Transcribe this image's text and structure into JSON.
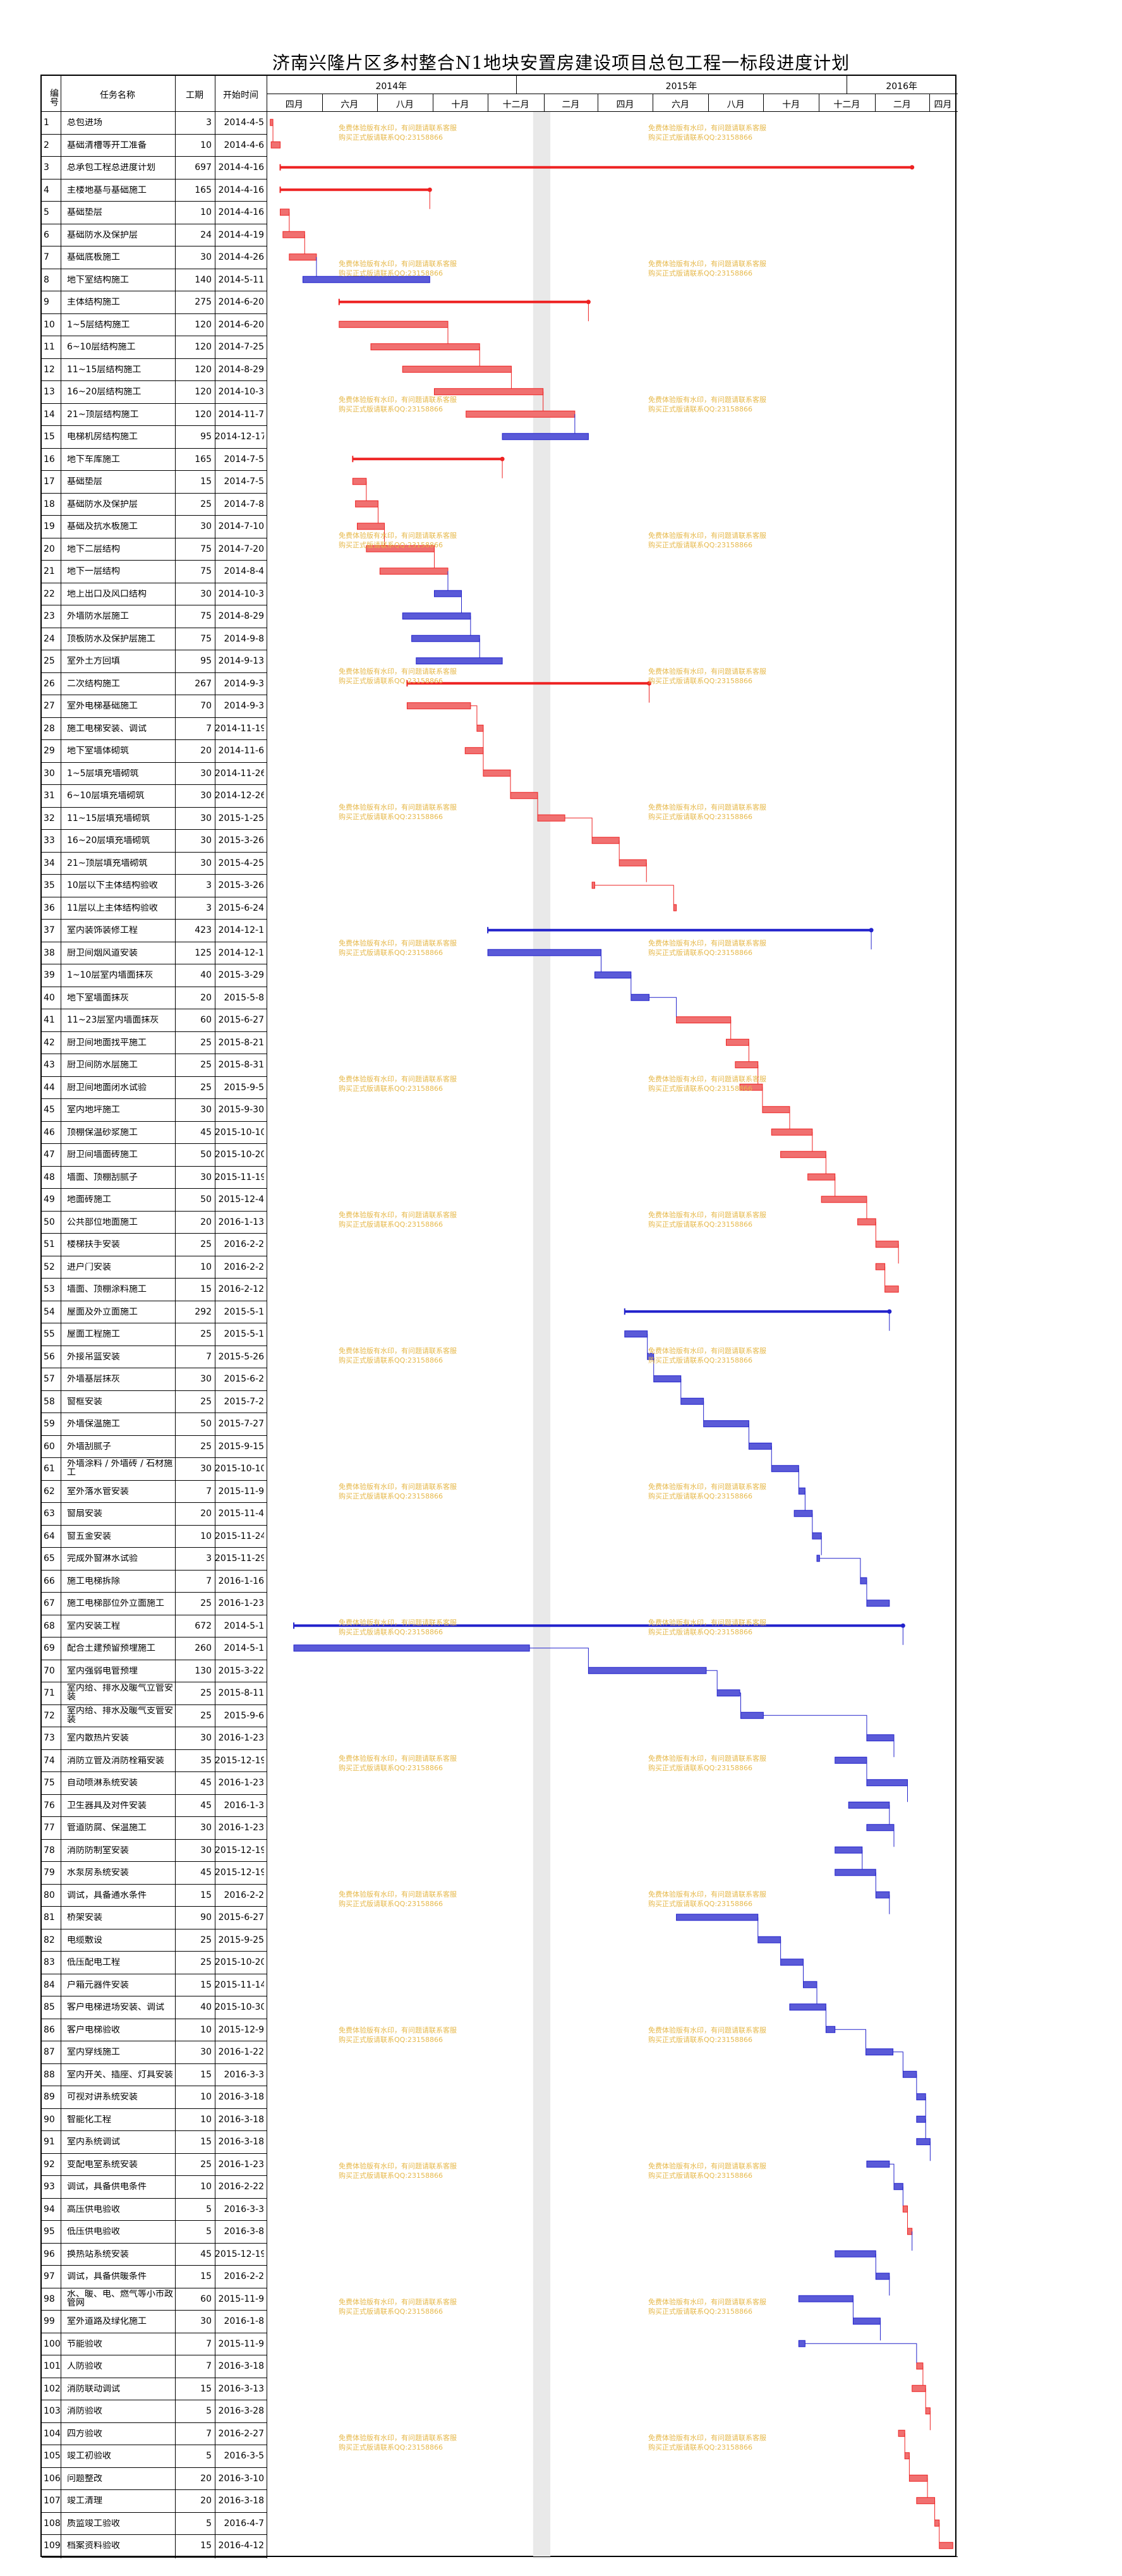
{
  "title": "济南兴隆片区多村整合N1地块安置房建设项目总包工程一标段进度计划",
  "headers": {
    "id": "编号",
    "name": "任务名称",
    "duration": "工期",
    "start": "开始时间"
  },
  "years": [
    "2014年",
    "2015年",
    "2016年"
  ],
  "months": [
    "四月",
    "六月",
    "八月",
    "十月",
    "十二月",
    "二月",
    "四月",
    "六月",
    "八月",
    "十月",
    "十二月",
    "二月",
    "四月"
  ],
  "watermark": {
    "line1": "免费体验版有水印，有问题请联系客服",
    "line2": "购买正式版请联系QQ:23158866"
  },
  "colors": {
    "red": "#ee2222",
    "blue": "#2222cc",
    "redbar": "#f07070",
    "bluebar": "#5a5ad8",
    "watermark": "#e6b84a"
  },
  "tasks": [
    {
      "id": "1",
      "name": "总包进场",
      "dur": "3",
      "start": "2014-4-5"
    },
    {
      "id": "2",
      "name": "基础清槽等开工准备",
      "dur": "10",
      "start": "2014-4-6"
    },
    {
      "id": "3",
      "name": "总承包工程总进度计划",
      "dur": "697",
      "start": "2014-4-16"
    },
    {
      "id": "4",
      "name": "主楼地基与基础施工",
      "dur": "165",
      "start": "2014-4-16"
    },
    {
      "id": "5",
      "name": "基础垫层",
      "dur": "10",
      "start": "2014-4-16"
    },
    {
      "id": "6",
      "name": "基础防水及保护层",
      "dur": "24",
      "start": "2014-4-19"
    },
    {
      "id": "7",
      "name": "基础底板施工",
      "dur": "30",
      "start": "2014-4-26"
    },
    {
      "id": "8",
      "name": "地下室结构施工",
      "dur": "140",
      "start": "2014-5-11"
    },
    {
      "id": "9",
      "name": "主体结构施工",
      "dur": "275",
      "start": "2014-6-20"
    },
    {
      "id": "10",
      "name": "1~5层结构施工",
      "dur": "120",
      "start": "2014-6-20"
    },
    {
      "id": "11",
      "name": "6~10层结构施工",
      "dur": "120",
      "start": "2014-7-25"
    },
    {
      "id": "12",
      "name": "11~15层结构施工",
      "dur": "120",
      "start": "2014-8-29"
    },
    {
      "id": "13",
      "name": "16~20层结构施工",
      "dur": "120",
      "start": "2014-10-3"
    },
    {
      "id": "14",
      "name": "21~顶层结构施工",
      "dur": "120",
      "start": "2014-11-7"
    },
    {
      "id": "15",
      "name": "电梯机房结构施工",
      "dur": "95",
      "start": "2014-12-17"
    },
    {
      "id": "16",
      "name": "地下车库施工",
      "dur": "165",
      "start": "2014-7-5"
    },
    {
      "id": "17",
      "name": "基础垫层",
      "dur": "15",
      "start": "2014-7-5"
    },
    {
      "id": "18",
      "name": "基础防水及保护层",
      "dur": "25",
      "start": "2014-7-8"
    },
    {
      "id": "19",
      "name": "基础及抗水板施工",
      "dur": "30",
      "start": "2014-7-10"
    },
    {
      "id": "20",
      "name": "地下二层结构",
      "dur": "75",
      "start": "2014-7-20"
    },
    {
      "id": "21",
      "name": "地下一层结构",
      "dur": "75",
      "start": "2014-8-4"
    },
    {
      "id": "22",
      "name": "地上出口及风口结构",
      "dur": "30",
      "start": "2014-10-3"
    },
    {
      "id": "23",
      "name": "外墙防水层施工",
      "dur": "75",
      "start": "2014-8-29"
    },
    {
      "id": "24",
      "name": "顶板防水及保护层施工",
      "dur": "75",
      "start": "2014-9-8"
    },
    {
      "id": "25",
      "name": "室外土方回填",
      "dur": "95",
      "start": "2014-9-13"
    },
    {
      "id": "26",
      "name": "二次结构施工",
      "dur": "267",
      "start": "2014-9-3"
    },
    {
      "id": "27",
      "name": "室外电梯基础施工",
      "dur": "70",
      "start": "2014-9-3"
    },
    {
      "id": "28",
      "name": "施工电梯安装、调试",
      "dur": "7",
      "start": "2014-11-19"
    },
    {
      "id": "29",
      "name": "地下室墙体砌筑",
      "dur": "20",
      "start": "2014-11-6"
    },
    {
      "id": "30",
      "name": "1~5层填充墙砌筑",
      "dur": "30",
      "start": "2014-11-26"
    },
    {
      "id": "31",
      "name": "6~10层填充墙砌筑",
      "dur": "30",
      "start": "2014-12-26"
    },
    {
      "id": "32",
      "name": "11~15层填充墙砌筑",
      "dur": "30",
      "start": "2015-1-25"
    },
    {
      "id": "33",
      "name": "16~20层填充墙砌筑",
      "dur": "30",
      "start": "2015-3-26"
    },
    {
      "id": "34",
      "name": "21~顶层填充墙砌筑",
      "dur": "30",
      "start": "2015-4-25"
    },
    {
      "id": "35",
      "name": "10层以下主体结构验收",
      "dur": "3",
      "start": "2015-3-26"
    },
    {
      "id": "36",
      "name": "11层以上主体结构验收",
      "dur": "3",
      "start": "2015-6-24"
    },
    {
      "id": "37",
      "name": "室内装饰装修工程",
      "dur": "423",
      "start": "2014-12-1"
    },
    {
      "id": "38",
      "name": "厨卫间烟风道安装",
      "dur": "125",
      "start": "2014-12-1"
    },
    {
      "id": "39",
      "name": "1~10层室内墙面抹灰",
      "dur": "40",
      "start": "2015-3-29"
    },
    {
      "id": "40",
      "name": "地下室墙面抹灰",
      "dur": "20",
      "start": "2015-5-8"
    },
    {
      "id": "41",
      "name": "11~23层室内墙面抹灰",
      "dur": "60",
      "start": "2015-6-27"
    },
    {
      "id": "42",
      "name": "厨卫间地面找平施工",
      "dur": "25",
      "start": "2015-8-21"
    },
    {
      "id": "43",
      "name": "厨卫间防水层施工",
      "dur": "25",
      "start": "2015-8-31"
    },
    {
      "id": "44",
      "name": "厨卫间地面闭水试验",
      "dur": "25",
      "start": "2015-9-5"
    },
    {
      "id": "45",
      "name": "室内地坪施工",
      "dur": "30",
      "start": "2015-9-30"
    },
    {
      "id": "46",
      "name": "顶棚保温砂浆施工",
      "dur": "45",
      "start": "2015-10-10"
    },
    {
      "id": "47",
      "name": "厨卫间墙面砖施工",
      "dur": "50",
      "start": "2015-10-20"
    },
    {
      "id": "48",
      "name": "墙面、顶棚刮腻子",
      "dur": "30",
      "start": "2015-11-19"
    },
    {
      "id": "49",
      "name": "地面砖施工",
      "dur": "50",
      "start": "2015-12-4"
    },
    {
      "id": "50",
      "name": "公共部位地面施工",
      "dur": "20",
      "start": "2016-1-13"
    },
    {
      "id": "51",
      "name": "楼梯扶手安装",
      "dur": "25",
      "start": "2016-2-2"
    },
    {
      "id": "52",
      "name": "进户门安装",
      "dur": "10",
      "start": "2016-2-2"
    },
    {
      "id": "53",
      "name": "墙面、顶棚涂料施工",
      "dur": "15",
      "start": "2016-2-12"
    },
    {
      "id": "54",
      "name": "屋面及外立面施工",
      "dur": "292",
      "start": "2015-5-1"
    },
    {
      "id": "55",
      "name": "屋面工程施工",
      "dur": "25",
      "start": "2015-5-1"
    },
    {
      "id": "56",
      "name": "外接吊篮安装",
      "dur": "7",
      "start": "2015-5-26"
    },
    {
      "id": "57",
      "name": "外墙基层抹灰",
      "dur": "30",
      "start": "2015-6-2"
    },
    {
      "id": "58",
      "name": "窗框安装",
      "dur": "25",
      "start": "2015-7-2"
    },
    {
      "id": "59",
      "name": "外墙保温施工",
      "dur": "50",
      "start": "2015-7-27"
    },
    {
      "id": "60",
      "name": "外墙刮腻子",
      "dur": "25",
      "start": "2015-9-15"
    },
    {
      "id": "61",
      "name": "外墙涂料 / 外墙砖 / 石材施工",
      "dur": "30",
      "start": "2015-10-10"
    },
    {
      "id": "62",
      "name": "室外落水管安装",
      "dur": "7",
      "start": "2015-11-9"
    },
    {
      "id": "63",
      "name": "窗扇安装",
      "dur": "20",
      "start": "2015-11-4"
    },
    {
      "id": "64",
      "name": "窗五金安装",
      "dur": "10",
      "start": "2015-11-24"
    },
    {
      "id": "65",
      "name": "完成外窗淋水试验",
      "dur": "3",
      "start": "2015-11-29"
    },
    {
      "id": "66",
      "name": "施工电梯拆除",
      "dur": "7",
      "start": "2016-1-16"
    },
    {
      "id": "67",
      "name": "施工电梯部位外立面施工",
      "dur": "25",
      "start": "2016-1-23"
    },
    {
      "id": "68",
      "name": "室内安装工程",
      "dur": "672",
      "start": "2014-5-1"
    },
    {
      "id": "69",
      "name": "配合土建预留预埋施工",
      "dur": "260",
      "start": "2014-5-1"
    },
    {
      "id": "70",
      "name": "室内强弱电管预埋",
      "dur": "130",
      "start": "2015-3-22"
    },
    {
      "id": "71",
      "name": "室内给、排水及暖气立管安装",
      "dur": "25",
      "start": "2015-8-11"
    },
    {
      "id": "72",
      "name": "室内给、排水及暖气支管安装",
      "dur": "25",
      "start": "2015-9-6"
    },
    {
      "id": "73",
      "name": "室内散热片安装",
      "dur": "30",
      "start": "2016-1-23"
    },
    {
      "id": "74",
      "name": "消防立管及消防栓箱安装",
      "dur": "35",
      "start": "2015-12-19"
    },
    {
      "id": "75",
      "name": "自动喷淋系统安装",
      "dur": "45",
      "start": "2016-1-23"
    },
    {
      "id": "76",
      "name": "卫生器具及对件安装",
      "dur": "45",
      "start": "2016-1-3"
    },
    {
      "id": "77",
      "name": "管道防腐、保温施工",
      "dur": "30",
      "start": "2016-1-23"
    },
    {
      "id": "78",
      "name": "消防防制室安装",
      "dur": "30",
      "start": "2015-12-19"
    },
    {
      "id": "79",
      "name": "水泵房系统安装",
      "dur": "45",
      "start": "2015-12-19"
    },
    {
      "id": "80",
      "name": "调试，具备通水条件",
      "dur": "15",
      "start": "2016-2-2"
    },
    {
      "id": "81",
      "name": "桥架安装",
      "dur": "90",
      "start": "2015-6-27"
    },
    {
      "id": "82",
      "name": "电缆敷设",
      "dur": "25",
      "start": "2015-9-25"
    },
    {
      "id": "83",
      "name": "低压配电工程",
      "dur": "25",
      "start": "2015-10-20"
    },
    {
      "id": "84",
      "name": "户箱元器件安装",
      "dur": "15",
      "start": "2015-11-14"
    },
    {
      "id": "85",
      "name": "客户电梯进场安装、调试",
      "dur": "40",
      "start": "2015-10-30"
    },
    {
      "id": "86",
      "name": "客户电梯验收",
      "dur": "10",
      "start": "2015-12-9"
    },
    {
      "id": "87",
      "name": "室内穿线施工",
      "dur": "30",
      "start": "2016-1-22"
    },
    {
      "id": "88",
      "name": "室内开关、插座、灯具安装",
      "dur": "15",
      "start": "2016-3-3"
    },
    {
      "id": "89",
      "name": "可视对讲系统安装",
      "dur": "10",
      "start": "2016-3-18"
    },
    {
      "id": "90",
      "name": "智能化工程",
      "dur": "10",
      "start": "2016-3-18"
    },
    {
      "id": "91",
      "name": "室内系统调试",
      "dur": "15",
      "start": "2016-3-18"
    },
    {
      "id": "92",
      "name": "变配电室系统安装",
      "dur": "25",
      "start": "2016-1-23"
    },
    {
      "id": "93",
      "name": "调试，具备供电条件",
      "dur": "10",
      "start": "2016-2-22"
    },
    {
      "id": "94",
      "name": "高压供电验收",
      "dur": "5",
      "start": "2016-3-3"
    },
    {
      "id": "95",
      "name": "低压供电验收",
      "dur": "5",
      "start": "2016-3-8"
    },
    {
      "id": "96",
      "name": "换热站系统安装",
      "dur": "45",
      "start": "2015-12-19"
    },
    {
      "id": "97",
      "name": "调试，具备供暖条件",
      "dur": "15",
      "start": "2016-2-2"
    },
    {
      "id": "98",
      "name": "水、暖、电、燃气等小市政管网",
      "dur": "60",
      "start": "2015-11-9"
    },
    {
      "id": "99",
      "name": "室外道路及绿化施工",
      "dur": "30",
      "start": "2016-1-8"
    },
    {
      "id": "100",
      "name": "节能验收",
      "dur": "7",
      "start": "2015-11-9"
    },
    {
      "id": "101",
      "name": "人防验收",
      "dur": "7",
      "start": "2016-3-18"
    },
    {
      "id": "102",
      "name": "消防联动调试",
      "dur": "15",
      "start": "2016-3-13"
    },
    {
      "id": "103",
      "name": "消防验收",
      "dur": "5",
      "start": "2016-3-28"
    },
    {
      "id": "104",
      "name": "四方验收",
      "dur": "7",
      "start": "2016-2-27"
    },
    {
      "id": "105",
      "name": "竣工初验收",
      "dur": "5",
      "start": "2016-3-5"
    },
    {
      "id": "106",
      "name": "问题整改",
      "dur": "20",
      "start": "2016-3-10"
    },
    {
      "id": "107",
      "name": "竣工清理",
      "dur": "20",
      "start": "2016-3-18"
    },
    {
      "id": "108",
      "name": "质监竣工验收",
      "dur": "5",
      "start": "2016-4-7"
    },
    {
      "id": "109",
      "name": "档案资料验收",
      "dur": "15",
      "start": "2016-4-12"
    }
  ],
  "summary_ids": [
    "3",
    "4",
    "9",
    "16",
    "26",
    "37",
    "54",
    "68"
  ],
  "critical_ids": [
    "1",
    "2",
    "3",
    "4",
    "5",
    "6",
    "7",
    "9",
    "10",
    "11",
    "12",
    "13",
    "14",
    "16",
    "17",
    "18",
    "19",
    "20",
    "21",
    "26",
    "27",
    "28",
    "29",
    "30",
    "31",
    "32",
    "33",
    "34",
    "35",
    "36",
    "41",
    "42",
    "43",
    "44",
    "45",
    "46",
    "47",
    "48",
    "49",
    "50",
    "51",
    "52",
    "53",
    "94",
    "95",
    "101",
    "102",
    "103",
    "104",
    "105",
    "106",
    "107",
    "108",
    "109"
  ]
}
